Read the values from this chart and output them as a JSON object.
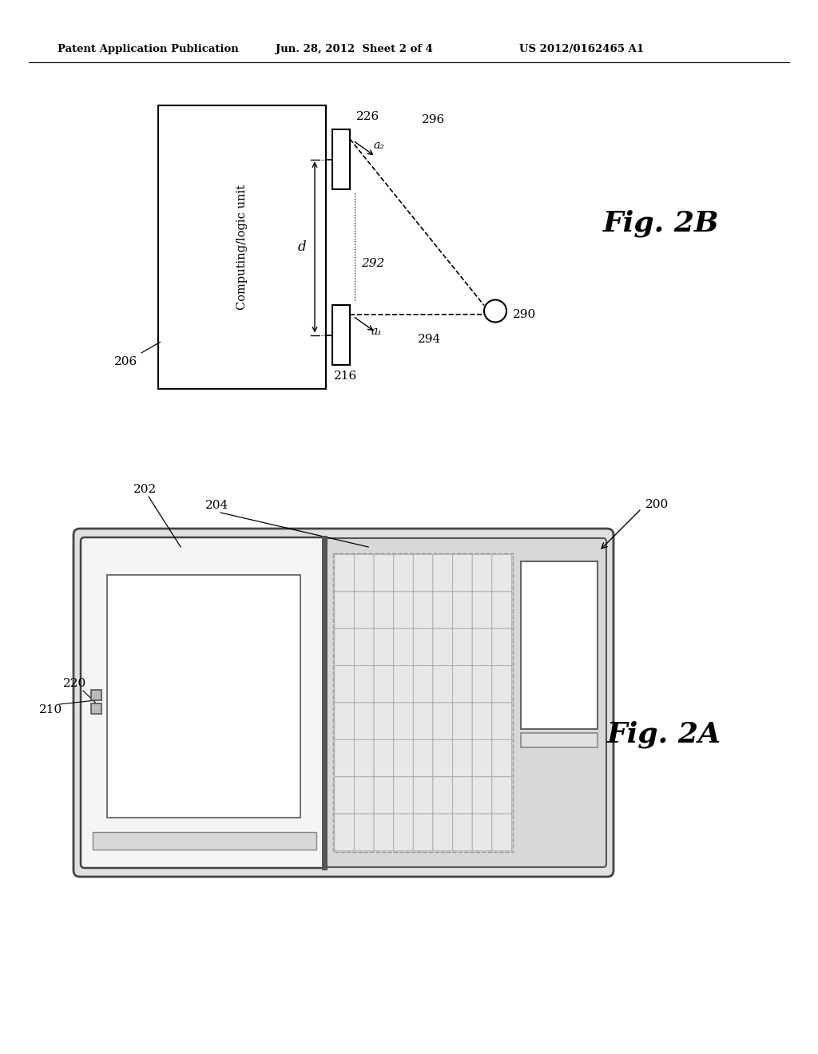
{
  "bg_color": "#ffffff",
  "header_text1": "Patent Application Publication",
  "header_text2": "Jun. 28, 2012  Sheet 2 of 4",
  "header_text3": "US 2012/0162465 A1",
  "fig2b_label": "Fig. 2B",
  "fig2a_label": "Fig. 2A",
  "label_206": "206",
  "label_226": "226",
  "label_216": "216",
  "label_296": "296",
  "label_292": "292",
  "label_294": "294",
  "label_290": "290",
  "label_d": "d",
  "label_az": "a₂",
  "label_at": "a₁",
  "label_200": "200",
  "label_202": "202",
  "label_204": "204",
  "label_210": "210",
  "label_220": "220",
  "computing_text": "Computing/logic unit",
  "line_color": "#000000"
}
